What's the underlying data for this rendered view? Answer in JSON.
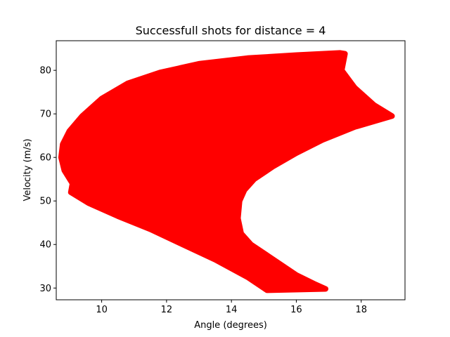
{
  "chart_data": {
    "type": "scatter",
    "title": "Successfull shots for distance = 4",
    "xlabel": "Angle (degrees)",
    "ylabel": "Velocity (m/s)",
    "xlim": [
      8.6,
      19.35
    ],
    "ylim": [
      27.3,
      86.8
    ],
    "xticks": [
      10,
      12,
      14,
      16,
      18
    ],
    "yticks": [
      30,
      40,
      50,
      60,
      70,
      80
    ],
    "grid": false,
    "legend": "none",
    "series": [
      {
        "color": "#ff0000",
        "marker": "circle",
        "region_outline": [
          [
            17.35,
            84.0
          ],
          [
            16.0,
            83.5
          ],
          [
            14.5,
            82.8
          ],
          [
            13.0,
            81.5
          ],
          [
            11.8,
            79.5
          ],
          [
            10.8,
            77.0
          ],
          [
            10.0,
            73.5
          ],
          [
            9.4,
            69.5
          ],
          [
            9.0,
            66.0
          ],
          [
            8.8,
            63.0
          ],
          [
            8.75,
            60.0
          ],
          [
            8.85,
            57.0
          ],
          [
            9.1,
            54.0
          ],
          [
            9.05,
            52.0
          ],
          [
            9.6,
            49.5
          ],
          [
            10.5,
            46.5
          ],
          [
            11.5,
            43.5
          ],
          [
            12.5,
            40.0
          ],
          [
            13.5,
            36.5
          ],
          [
            14.5,
            32.5
          ],
          [
            15.1,
            29.5
          ],
          [
            16.9,
            29.8
          ],
          [
            16.6,
            30.8
          ],
          [
            16.0,
            33.0
          ],
          [
            15.2,
            37.0
          ],
          [
            14.6,
            40.0
          ],
          [
            14.3,
            42.5
          ],
          [
            14.2,
            46.0
          ],
          [
            14.25,
            50.0
          ],
          [
            14.4,
            52.5
          ],
          [
            14.7,
            55.0
          ],
          [
            15.3,
            58.0
          ],
          [
            16.0,
            61.0
          ],
          [
            16.8,
            64.0
          ],
          [
            17.8,
            67.0
          ],
          [
            18.95,
            69.5
          ],
          [
            18.4,
            72.0
          ],
          [
            17.8,
            76.0
          ],
          [
            17.4,
            80.0
          ],
          [
            17.5,
            83.8
          ]
        ]
      }
    ]
  }
}
